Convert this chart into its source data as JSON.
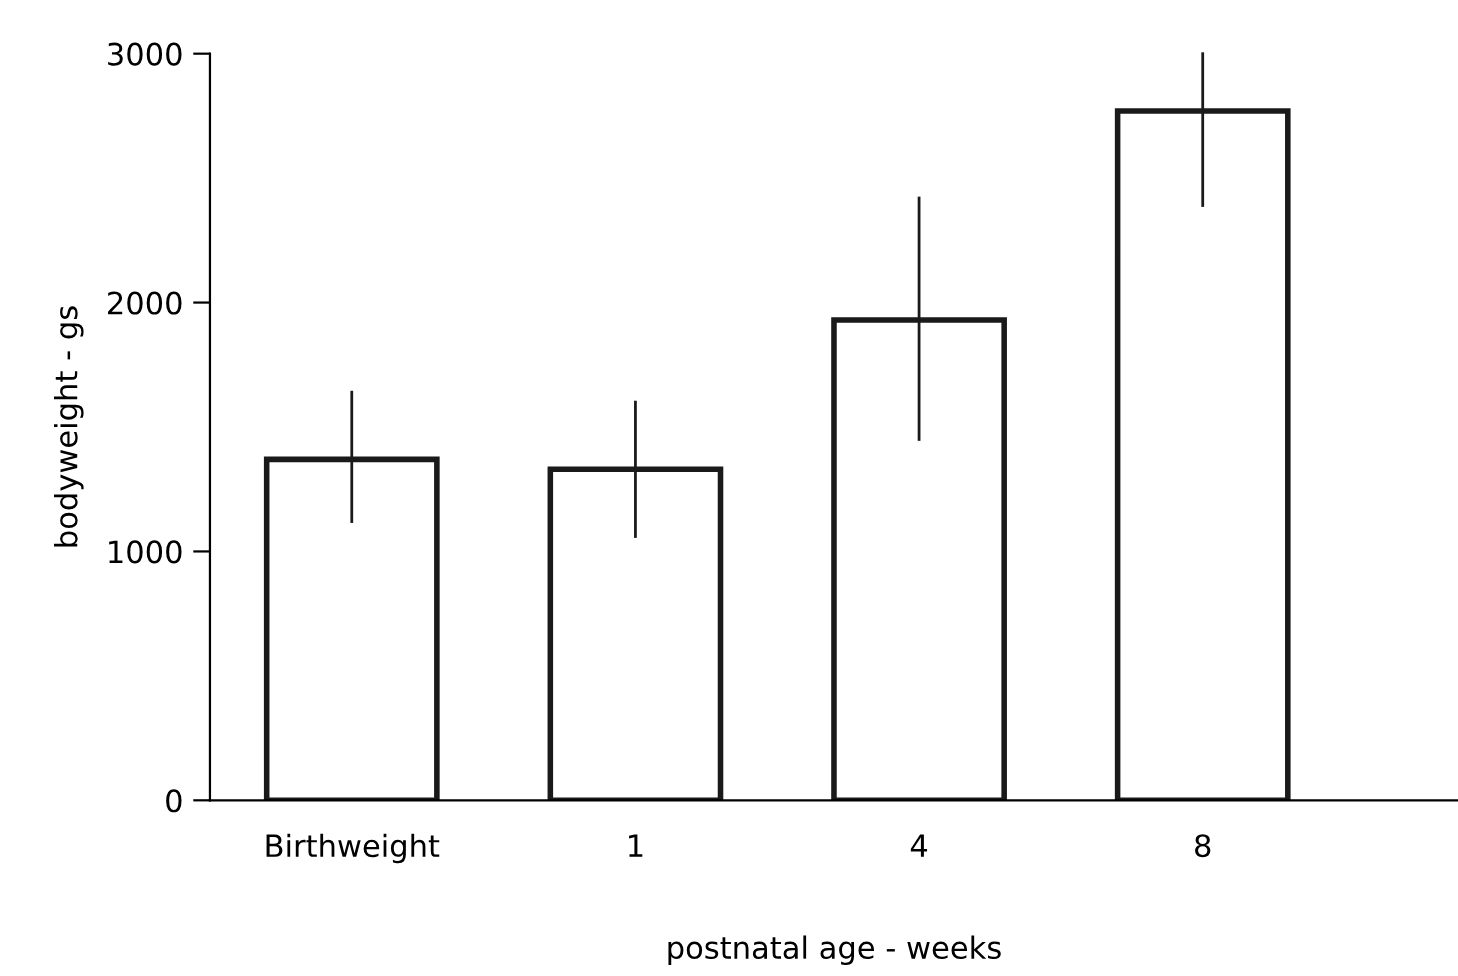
{
  "chart_data": {
    "type": "bar",
    "xlabel": "postnatal age - weeks",
    "ylabel": "bodyweight - gs",
    "categories": [
      "Birthweight",
      "1",
      "4",
      "8"
    ],
    "values": [
      1370,
      1330,
      1930,
      2770
    ],
    "errors": [
      [
        1120,
        1640
      ],
      [
        1060,
        1600
      ],
      [
        1450,
        2420
      ],
      [
        2390,
        3000
      ]
    ],
    "color": "#ffffff",
    "ylim": [
      0,
      3000
    ],
    "yticks": [
      0,
      1000,
      2000,
      3000
    ],
    "grid": false,
    "legend": false
  }
}
